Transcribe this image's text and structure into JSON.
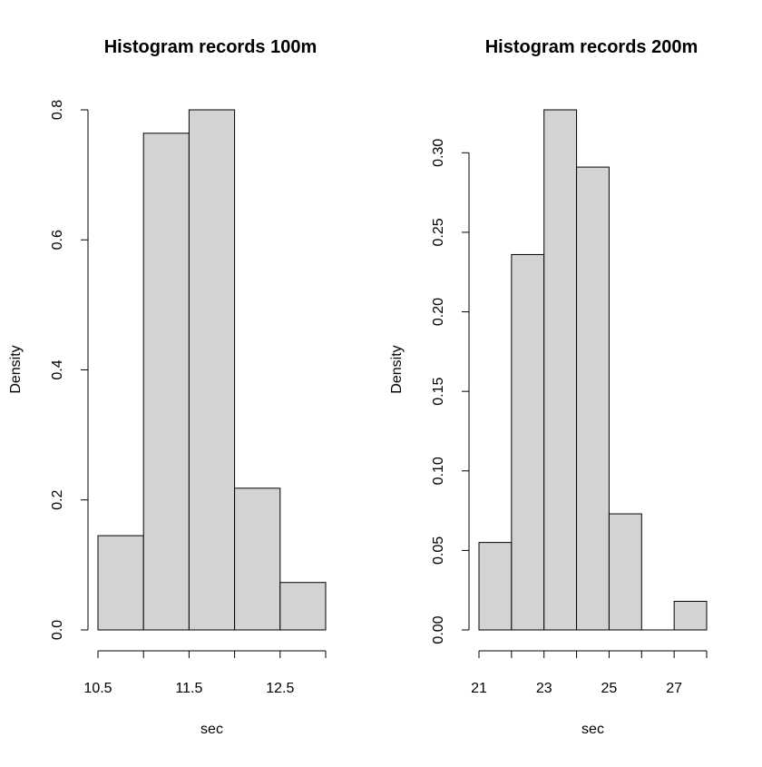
{
  "chart_data": [
    {
      "type": "histogram",
      "title": "Histogram records 100m",
      "xlabel": "sec",
      "ylabel": "Density",
      "bin_edges": [
        10.5,
        11.0,
        11.5,
        12.0,
        12.5,
        13.0
      ],
      "values": [
        0.145,
        0.764,
        0.8,
        0.218,
        0.073
      ],
      "x_ticks": [
        10.5,
        11.0,
        11.5,
        12.0,
        12.5,
        13.0
      ],
      "x_tick_labels": [
        "10.5",
        "",
        "11.5",
        "",
        "12.5",
        ""
      ],
      "y_ticks": [
        0.0,
        0.2,
        0.4,
        0.6,
        0.8
      ],
      "y_tick_labels": [
        "0.0",
        "0.2",
        "0.4",
        "0.6",
        "0.8"
      ],
      "ylim": [
        0,
        0.8
      ],
      "bar_color": "#d3d3d3",
      "grid": false
    },
    {
      "type": "histogram",
      "title": "Histogram records 200m",
      "xlabel": "sec",
      "ylabel": "Density",
      "bin_edges": [
        21,
        22,
        23,
        24,
        25,
        26,
        27,
        28
      ],
      "values": [
        0.055,
        0.236,
        0.327,
        0.291,
        0.073,
        0.0,
        0.018
      ],
      "x_ticks": [
        21,
        22,
        23,
        24,
        25,
        26,
        27,
        28
      ],
      "x_tick_labels": [
        "21",
        "",
        "23",
        "",
        "25",
        "",
        "27",
        ""
      ],
      "y_ticks": [
        0.0,
        0.05,
        0.1,
        0.15,
        0.2,
        0.25,
        0.3
      ],
      "y_tick_labels": [
        "0.00",
        "0.05",
        "0.10",
        "0.15",
        "0.20",
        "0.25",
        "0.30"
      ],
      "ylim": [
        0,
        0.327
      ],
      "bar_color": "#d3d3d3",
      "grid": false
    }
  ]
}
